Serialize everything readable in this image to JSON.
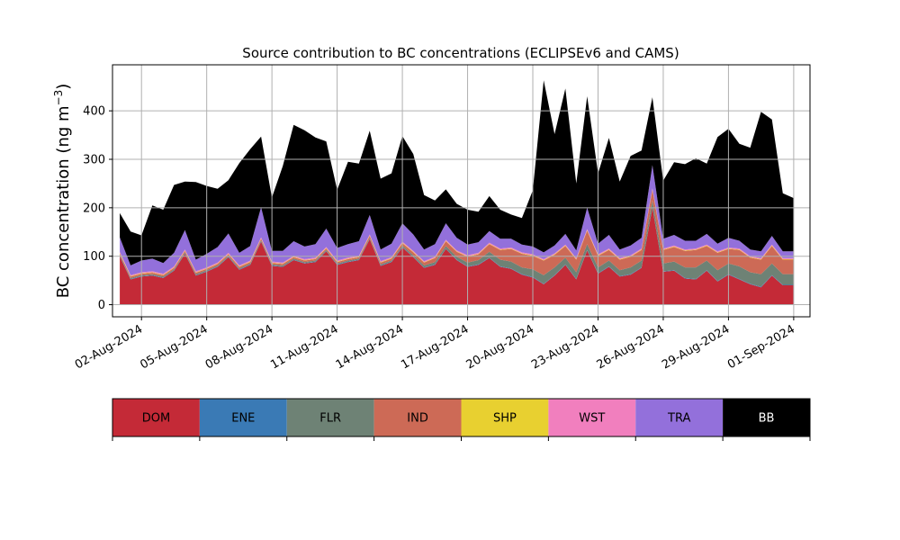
{
  "chart_data": {
    "type": "area",
    "stacked": true,
    "title": "Source contribution to BC concentrations (ECLIPSEv6 and CAMS)",
    "xlabel": "",
    "ylabel": "BC concentration (ng m",
    "ylabel_sup": "−3",
    "ylabel_close": ")",
    "grid": true,
    "ylim": [
      -25,
      495
    ],
    "yticks": [
      0,
      100,
      200,
      300,
      400
    ],
    "xrange": [
      "2024-07-31T16:00",
      "2024-09-01T18:00"
    ],
    "xticks": [
      {
        "date": "2024-08-02",
        "label": "02-Aug-2024"
      },
      {
        "date": "2024-08-05",
        "label": "05-Aug-2024"
      },
      {
        "date": "2024-08-08",
        "label": "08-Aug-2024"
      },
      {
        "date": "2024-08-11",
        "label": "11-Aug-2024"
      },
      {
        "date": "2024-08-14",
        "label": "14-Aug-2024"
      },
      {
        "date": "2024-08-17",
        "label": "17-Aug-2024"
      },
      {
        "date": "2024-08-20",
        "label": "20-Aug-2024"
      },
      {
        "date": "2024-08-23",
        "label": "23-Aug-2024"
      },
      {
        "date": "2024-08-26",
        "label": "26-Aug-2024"
      },
      {
        "date": "2024-08-29",
        "label": "29-Aug-2024"
      },
      {
        "date": "2024-09-01",
        "label": "01-Sep-2024"
      }
    ],
    "x": [
      "2024-08-01T00:00",
      "2024-08-01T12:00",
      "2024-08-02T00:00",
      "2024-08-02T12:00",
      "2024-08-03T00:00",
      "2024-08-03T12:00",
      "2024-08-04T00:00",
      "2024-08-04T12:00",
      "2024-08-05T00:00",
      "2024-08-05T12:00",
      "2024-08-06T00:00",
      "2024-08-06T12:00",
      "2024-08-07T00:00",
      "2024-08-07T12:00",
      "2024-08-08T00:00",
      "2024-08-08T12:00",
      "2024-08-09T00:00",
      "2024-08-09T12:00",
      "2024-08-10T00:00",
      "2024-08-10T12:00",
      "2024-08-11T00:00",
      "2024-08-11T12:00",
      "2024-08-12T00:00",
      "2024-08-12T12:00",
      "2024-08-13T00:00",
      "2024-08-13T12:00",
      "2024-08-14T00:00",
      "2024-08-14T12:00",
      "2024-08-15T00:00",
      "2024-08-15T12:00",
      "2024-08-16T00:00",
      "2024-08-16T12:00",
      "2024-08-17T00:00",
      "2024-08-17T12:00",
      "2024-08-18T00:00",
      "2024-08-18T12:00",
      "2024-08-19T00:00",
      "2024-08-19T12:00",
      "2024-08-20T00:00",
      "2024-08-20T12:00",
      "2024-08-21T00:00",
      "2024-08-21T12:00",
      "2024-08-22T00:00",
      "2024-08-22T12:00",
      "2024-08-23T00:00",
      "2024-08-23T12:00",
      "2024-08-24T00:00",
      "2024-08-24T12:00",
      "2024-08-25T00:00",
      "2024-08-25T12:00",
      "2024-08-26T00:00",
      "2024-08-26T12:00",
      "2024-08-27T00:00",
      "2024-08-27T12:00",
      "2024-08-28T00:00",
      "2024-08-28T12:00",
      "2024-08-29T00:00",
      "2024-08-29T12:00",
      "2024-08-30T00:00",
      "2024-08-30T12:00",
      "2024-08-31T00:00",
      "2024-08-31T12:00",
      "2024-09-01T00:00"
    ],
    "series": [
      {
        "name": "DOM",
        "color": "#c42a37",
        "values": [
          100,
          52,
          58,
          60,
          55,
          70,
          105,
          60,
          68,
          78,
          98,
          72,
          82,
          130,
          80,
          78,
          92,
          85,
          88,
          110,
          82,
          88,
          92,
          135,
          80,
          88,
          118,
          98,
          76,
          82,
          115,
          92,
          78,
          82,
          96,
          78,
          74,
          62,
          56,
          42,
          60,
          82,
          52,
          112,
          64,
          78,
          58,
          62,
          76,
          200,
          68,
          70,
          54,
          52,
          70,
          48,
          62,
          52,
          42,
          36,
          60,
          40,
          40
        ]
      },
      {
        "name": "ENE",
        "color": "#3a7ab5",
        "values": [
          1,
          1,
          1,
          1,
          1,
          1,
          1,
          1,
          1,
          1,
          1,
          1,
          1,
          1,
          1,
          1,
          1,
          1,
          1,
          1,
          1,
          1,
          1,
          1,
          1,
          1,
          1,
          1,
          1,
          1,
          1,
          1,
          1,
          1,
          1,
          1,
          1,
          1,
          1,
          1,
          1,
          1,
          1,
          1,
          1,
          1,
          1,
          1,
          1,
          1,
          1,
          1,
          1,
          1,
          1,
          1,
          1,
          1,
          1,
          1,
          1,
          1,
          1
        ]
      },
      {
        "name": "FLR",
        "color": "#6e8275",
        "values": [
          2,
          2,
          2,
          2,
          2,
          2,
          2,
          2,
          2,
          2,
          2,
          2,
          2,
          2,
          2,
          2,
          2,
          2,
          2,
          2,
          2,
          2,
          2,
          2,
          2,
          2,
          3,
          3,
          4,
          5,
          5,
          6,
          8,
          9,
          12,
          14,
          14,
          14,
          16,
          18,
          16,
          14,
          14,
          12,
          12,
          12,
          12,
          14,
          14,
          14,
          16,
          18,
          22,
          24,
          20,
          22,
          22,
          26,
          24,
          26,
          24,
          22,
          22
        ]
      },
      {
        "name": "IND",
        "color": "#cd6a56",
        "values": [
          3,
          3,
          3,
          3,
          3,
          3,
          3,
          3,
          3,
          3,
          3,
          3,
          3,
          3,
          3,
          3,
          3,
          3,
          3,
          3,
          3,
          3,
          3,
          4,
          4,
          4,
          5,
          6,
          6,
          8,
          10,
          10,
          12,
          12,
          16,
          20,
          26,
          28,
          28,
          30,
          26,
          24,
          26,
          28,
          24,
          22,
          22,
          22,
          22,
          22,
          28,
          30,
          34,
          36,
          30,
          36,
          30,
          34,
          30,
          30,
          36,
          30,
          30
        ]
      },
      {
        "name": "SHP",
        "color": "#e8d030",
        "values": [
          1,
          1,
          1,
          1,
          1,
          1,
          1,
          1,
          1,
          1,
          1,
          1,
          1,
          1,
          1,
          1,
          1,
          1,
          1,
          1,
          1,
          1,
          1,
          1,
          1,
          1,
          1,
          1,
          1,
          1,
          1,
          1,
          1,
          1,
          1,
          1,
          1,
          1,
          1,
          1,
          1,
          1,
          1,
          1,
          1,
          1,
          1,
          1,
          1,
          1,
          1,
          1,
          1,
          1,
          1,
          1,
          1,
          1,
          1,
          1,
          1,
          1,
          1
        ]
      },
      {
        "name": "WST",
        "color": "#f17fbe",
        "values": [
          2,
          2,
          2,
          2,
          2,
          2,
          2,
          2,
          2,
          2,
          2,
          2,
          2,
          2,
          2,
          2,
          2,
          2,
          2,
          2,
          2,
          2,
          2,
          2,
          2,
          2,
          2,
          2,
          2,
          2,
          2,
          2,
          2,
          2,
          2,
          2,
          2,
          2,
          2,
          2,
          2,
          2,
          2,
          2,
          2,
          2,
          2,
          2,
          2,
          2,
          2,
          2,
          2,
          2,
          2,
          2,
          2,
          2,
          2,
          2,
          2,
          2,
          2
        ]
      },
      {
        "name": "TRA",
        "color": "#9370db",
        "values": [
          30,
          20,
          24,
          26,
          22,
          28,
          40,
          24,
          28,
          32,
          40,
          26,
          30,
          62,
          22,
          24,
          30,
          26,
          28,
          38,
          26,
          28,
          30,
          40,
          24,
          28,
          38,
          34,
          24,
          26,
          34,
          26,
          22,
          22,
          24,
          20,
          18,
          16,
          16,
          14,
          16,
          22,
          16,
          44,
          22,
          28,
          18,
          20,
          22,
          48,
          20,
          22,
          18,
          16,
          22,
          16,
          20,
          16,
          14,
          14,
          18,
          14,
          14
        ]
      },
      {
        "name": "BB",
        "color": "#000000",
        "values": [
          50,
          70,
          52,
          110,
          110,
          140,
          100,
          160,
          140,
          120,
          110,
          185,
          200,
          146,
          110,
          175,
          240,
          240,
          220,
          180,
          120,
          170,
          160,
          174,
          146,
          145,
          180,
          166,
          112,
          90,
          70,
          70,
          72,
          63,
          72,
          60,
          50,
          55,
          116,
          355,
          230,
          300,
          138,
          230,
          145,
          200,
          140,
          185,
          180,
          140,
          120,
          150,
          158,
          170,
          145,
          220,
          225,
          200,
          210,
          288,
          240,
          120,
          110
        ]
      }
    ]
  },
  "legend": {
    "items": [
      {
        "label": "DOM",
        "color": "#c42a37",
        "text_color": "#000000"
      },
      {
        "label": "ENE",
        "color": "#3a7ab5",
        "text_color": "#000000"
      },
      {
        "label": "FLR",
        "color": "#6e8275",
        "text_color": "#000000"
      },
      {
        "label": "IND",
        "color": "#cd6a56",
        "text_color": "#000000"
      },
      {
        "label": "SHP",
        "color": "#e8d030",
        "text_color": "#000000"
      },
      {
        "label": "WST",
        "color": "#f17fbe",
        "text_color": "#000000"
      },
      {
        "label": "TRA",
        "color": "#9370db",
        "text_color": "#000000"
      },
      {
        "label": "BB",
        "color": "#000000",
        "text_color": "#ffffff"
      }
    ]
  }
}
